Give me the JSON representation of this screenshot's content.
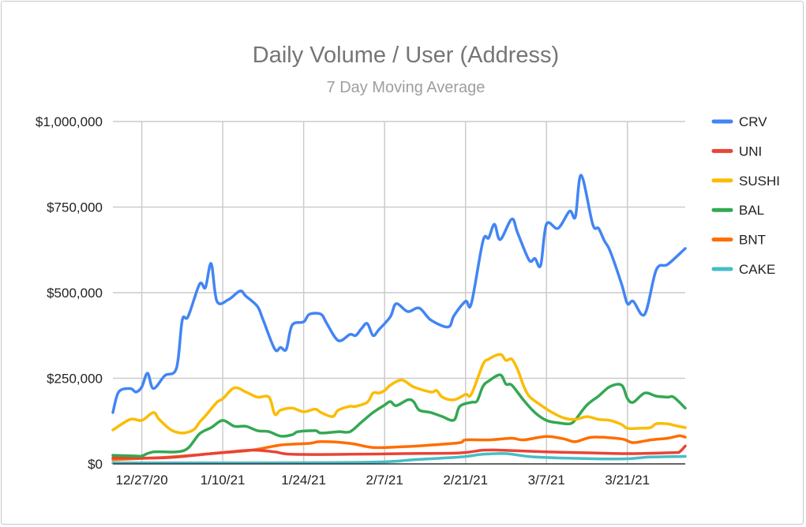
{
  "chart_data": {
    "type": "line",
    "title": "Daily Volume / User (Address)",
    "subtitle": "7 Day Moving Average",
    "xlabel": "",
    "ylabel": "",
    "xlim": [
      "2020-12-22",
      "2021-03-31"
    ],
    "ylim": [
      0,
      1000000
    ],
    "grid": true,
    "legend_position": "right",
    "y_ticks": [
      {
        "value": 0,
        "label": "$0"
      },
      {
        "value": 250000,
        "label": "$250,000"
      },
      {
        "value": 500000,
        "label": "$500,000"
      },
      {
        "value": 750000,
        "label": "$750,000"
      },
      {
        "value": 1000000,
        "label": "$1,000,000"
      }
    ],
    "x_ticks": [
      {
        "value": "2020-12-27",
        "label": "12/27/20"
      },
      {
        "value": "2021-01-10",
        "label": "1/10/21"
      },
      {
        "value": "2021-01-24",
        "label": "1/24/21"
      },
      {
        "value": "2021-02-07",
        "label": "2/7/21"
      },
      {
        "value": "2021-02-21",
        "label": "2/21/21"
      },
      {
        "value": "2021-03-07",
        "label": "3/7/21"
      },
      {
        "value": "2021-03-21",
        "label": "3/21/21"
      }
    ],
    "series": [
      {
        "name": "CRV",
        "color": "#4285f4",
        "points": [
          [
            "2020-12-22",
            150000
          ],
          [
            "2020-12-23",
            210000
          ],
          [
            "2020-12-25",
            220000
          ],
          [
            "2020-12-26",
            210000
          ],
          [
            "2020-12-27",
            225000
          ],
          [
            "2020-12-28",
            265000
          ],
          [
            "2020-12-29",
            220000
          ],
          [
            "2020-12-31",
            258000
          ],
          [
            "2021-01-02",
            280000
          ],
          [
            "2021-01-03",
            420000
          ],
          [
            "2021-01-04",
            430000
          ],
          [
            "2021-01-06",
            525000
          ],
          [
            "2021-01-07",
            515000
          ],
          [
            "2021-01-08",
            585000
          ],
          [
            "2021-01-09",
            475000
          ],
          [
            "2021-01-11",
            480000
          ],
          [
            "2021-01-13",
            505000
          ],
          [
            "2021-01-14",
            490000
          ],
          [
            "2021-01-16",
            460000
          ],
          [
            "2021-01-17",
            420000
          ],
          [
            "2021-01-19",
            335000
          ],
          [
            "2021-01-20",
            340000
          ],
          [
            "2021-01-21",
            335000
          ],
          [
            "2021-01-22",
            405000
          ],
          [
            "2021-01-24",
            415000
          ],
          [
            "2021-01-25",
            437000
          ],
          [
            "2021-01-27",
            437000
          ],
          [
            "2021-01-28",
            410000
          ],
          [
            "2021-01-30",
            360000
          ],
          [
            "2021-02-01",
            378000
          ],
          [
            "2021-02-02",
            375000
          ],
          [
            "2021-02-03",
            395000
          ],
          [
            "2021-02-04",
            410000
          ],
          [
            "2021-02-05",
            375000
          ],
          [
            "2021-02-06",
            392000
          ],
          [
            "2021-02-08",
            430000
          ],
          [
            "2021-02-09",
            468000
          ],
          [
            "2021-02-11",
            445000
          ],
          [
            "2021-02-13",
            455000
          ],
          [
            "2021-02-15",
            420000
          ],
          [
            "2021-02-18",
            400000
          ],
          [
            "2021-02-19",
            433000
          ],
          [
            "2021-02-21",
            475000
          ],
          [
            "2021-02-22",
            468000
          ],
          [
            "2021-02-24",
            650000
          ],
          [
            "2021-02-25",
            660000
          ],
          [
            "2021-02-26",
            700000
          ],
          [
            "2021-02-27",
            655000
          ],
          [
            "2021-03-01",
            715000
          ],
          [
            "2021-03-02",
            675000
          ],
          [
            "2021-03-04",
            595000
          ],
          [
            "2021-03-05",
            600000
          ],
          [
            "2021-03-06",
            580000
          ],
          [
            "2021-03-07",
            700000
          ],
          [
            "2021-03-09",
            688000
          ],
          [
            "2021-03-11",
            738000
          ],
          [
            "2021-03-12",
            722000
          ],
          [
            "2021-03-13",
            843000
          ],
          [
            "2021-03-15",
            700000
          ],
          [
            "2021-03-16",
            688000
          ],
          [
            "2021-03-17",
            652000
          ],
          [
            "2021-03-18",
            622000
          ],
          [
            "2021-03-20",
            525000
          ],
          [
            "2021-03-21",
            468000
          ],
          [
            "2021-03-22",
            475000
          ],
          [
            "2021-03-24",
            437000
          ],
          [
            "2021-03-26",
            567000
          ],
          [
            "2021-03-28",
            583000
          ],
          [
            "2021-03-31",
            629000
          ]
        ]
      },
      {
        "name": "UNI",
        "color": "#ea4335",
        "points": [
          [
            "2020-12-22",
            18000
          ],
          [
            "2020-12-31",
            18000
          ],
          [
            "2021-01-08",
            30000
          ],
          [
            "2021-01-15",
            40000
          ],
          [
            "2021-01-19",
            35000
          ],
          [
            "2021-01-22",
            28000
          ],
          [
            "2021-02-01",
            28000
          ],
          [
            "2021-02-10",
            30000
          ],
          [
            "2021-02-20",
            32000
          ],
          [
            "2021-02-24",
            40000
          ],
          [
            "2021-02-27",
            40000
          ],
          [
            "2021-03-07",
            35000
          ],
          [
            "2021-03-15",
            32000
          ],
          [
            "2021-03-22",
            30000
          ],
          [
            "2021-03-29",
            33000
          ],
          [
            "2021-03-30",
            35000
          ],
          [
            "2021-03-31",
            52000
          ]
        ]
      },
      {
        "name": "SUSHI",
        "color": "#fbbc04",
        "points": [
          [
            "2020-12-22",
            99000
          ],
          [
            "2020-12-25",
            130000
          ],
          [
            "2020-12-27",
            127000
          ],
          [
            "2020-12-29",
            150000
          ],
          [
            "2020-12-30",
            130000
          ],
          [
            "2021-01-01",
            100000
          ],
          [
            "2021-01-03",
            90000
          ],
          [
            "2021-01-05",
            100000
          ],
          [
            "2021-01-06",
            122000
          ],
          [
            "2021-01-07",
            140000
          ],
          [
            "2021-01-09",
            180000
          ],
          [
            "2021-01-10",
            190000
          ],
          [
            "2021-01-12",
            222000
          ],
          [
            "2021-01-14",
            210000
          ],
          [
            "2021-01-16",
            195000
          ],
          [
            "2021-01-18",
            195000
          ],
          [
            "2021-01-19",
            145000
          ],
          [
            "2021-01-20",
            157000
          ],
          [
            "2021-01-22",
            163000
          ],
          [
            "2021-01-24",
            152000
          ],
          [
            "2021-01-26",
            160000
          ],
          [
            "2021-01-27",
            150000
          ],
          [
            "2021-01-29",
            138000
          ],
          [
            "2021-01-30",
            157000
          ],
          [
            "2021-02-01",
            168000
          ],
          [
            "2021-02-02",
            168000
          ],
          [
            "2021-02-04",
            180000
          ],
          [
            "2021-02-05",
            207000
          ],
          [
            "2021-02-06",
            207000
          ],
          [
            "2021-02-07",
            214000
          ],
          [
            "2021-02-08",
            230000
          ],
          [
            "2021-02-10",
            245000
          ],
          [
            "2021-02-12",
            225000
          ],
          [
            "2021-02-15",
            210000
          ],
          [
            "2021-02-16",
            214000
          ],
          [
            "2021-02-17",
            195000
          ],
          [
            "2021-02-19",
            187000
          ],
          [
            "2021-02-21",
            203000
          ],
          [
            "2021-02-22",
            203000
          ],
          [
            "2021-02-24",
            290000
          ],
          [
            "2021-02-25",
            306000
          ],
          [
            "2021-02-27",
            320000
          ],
          [
            "2021-02-28",
            302000
          ],
          [
            "2021-03-01",
            306000
          ],
          [
            "2021-03-02",
            276000
          ],
          [
            "2021-03-03",
            230000
          ],
          [
            "2021-03-04",
            198000
          ],
          [
            "2021-03-06",
            172000
          ],
          [
            "2021-03-08",
            150000
          ],
          [
            "2021-03-10",
            134000
          ],
          [
            "2021-03-12",
            130000
          ],
          [
            "2021-03-14",
            138000
          ],
          [
            "2021-03-16",
            130000
          ],
          [
            "2021-03-18",
            127000
          ],
          [
            "2021-03-20",
            115000
          ],
          [
            "2021-03-21",
            104000
          ],
          [
            "2021-03-23",
            104000
          ],
          [
            "2021-03-25",
            106000
          ],
          [
            "2021-03-26",
            117000
          ],
          [
            "2021-03-28",
            117000
          ],
          [
            "2021-03-29",
            113000
          ],
          [
            "2021-03-31",
            106000
          ]
        ]
      },
      {
        "name": "BAL",
        "color": "#34a853",
        "points": [
          [
            "2020-12-22",
            25000
          ],
          [
            "2020-12-26",
            23000
          ],
          [
            "2020-12-27",
            23000
          ],
          [
            "2020-12-29",
            35000
          ],
          [
            "2021-01-02",
            35000
          ],
          [
            "2021-01-04",
            46000
          ],
          [
            "2021-01-06",
            88000
          ],
          [
            "2021-01-08",
            106000
          ],
          [
            "2021-01-10",
            127000
          ],
          [
            "2021-01-12",
            110000
          ],
          [
            "2021-01-14",
            110000
          ],
          [
            "2021-01-16",
            97000
          ],
          [
            "2021-01-18",
            94000
          ],
          [
            "2021-01-20",
            81000
          ],
          [
            "2021-01-22",
            85000
          ],
          [
            "2021-01-23",
            94000
          ],
          [
            "2021-01-26",
            97000
          ],
          [
            "2021-01-27",
            90000
          ],
          [
            "2021-01-30",
            94000
          ],
          [
            "2021-02-01",
            94000
          ],
          [
            "2021-02-03",
            122000
          ],
          [
            "2021-02-05",
            150000
          ],
          [
            "2021-02-07",
            172000
          ],
          [
            "2021-02-08",
            182000
          ],
          [
            "2021-02-09",
            170000
          ],
          [
            "2021-02-11",
            187000
          ],
          [
            "2021-02-12",
            182000
          ],
          [
            "2021-02-13",
            157000
          ],
          [
            "2021-02-15",
            150000
          ],
          [
            "2021-02-17",
            138000
          ],
          [
            "2021-02-19",
            128000
          ],
          [
            "2021-02-20",
            168000
          ],
          [
            "2021-02-22",
            180000
          ],
          [
            "2021-02-23",
            184000
          ],
          [
            "2021-02-24",
            226000
          ],
          [
            "2021-02-25",
            242000
          ],
          [
            "2021-02-27",
            260000
          ],
          [
            "2021-02-28",
            233000
          ],
          [
            "2021-03-01",
            230000
          ],
          [
            "2021-03-03",
            187000
          ],
          [
            "2021-03-05",
            150000
          ],
          [
            "2021-03-07",
            127000
          ],
          [
            "2021-03-09",
            120000
          ],
          [
            "2021-03-11",
            117000
          ],
          [
            "2021-03-12",
            129000
          ],
          [
            "2021-03-14",
            172000
          ],
          [
            "2021-03-16",
            198000
          ],
          [
            "2021-03-18",
            226000
          ],
          [
            "2021-03-20",
            230000
          ],
          [
            "2021-03-21",
            191000
          ],
          [
            "2021-03-22",
            180000
          ],
          [
            "2021-03-24",
            207000
          ],
          [
            "2021-03-26",
            198000
          ],
          [
            "2021-03-28",
            195000
          ],
          [
            "2021-03-29",
            195000
          ],
          [
            "2021-03-31",
            163000
          ]
        ]
      },
      {
        "name": "BNT",
        "color": "#ff6d01",
        "points": [
          [
            "2020-12-22",
            12000
          ],
          [
            "2021-01-01",
            20000
          ],
          [
            "2021-01-08",
            30000
          ],
          [
            "2021-01-15",
            40000
          ],
          [
            "2021-01-20",
            55000
          ],
          [
            "2021-01-25",
            60000
          ],
          [
            "2021-01-27",
            65000
          ],
          [
            "2021-02-01",
            60000
          ],
          [
            "2021-02-05",
            48000
          ],
          [
            "2021-02-10",
            50000
          ],
          [
            "2021-02-15",
            55000
          ],
          [
            "2021-02-20",
            62000
          ],
          [
            "2021-02-21",
            70000
          ],
          [
            "2021-02-25",
            70000
          ],
          [
            "2021-03-01",
            75000
          ],
          [
            "2021-03-03",
            70000
          ],
          [
            "2021-03-07",
            80000
          ],
          [
            "2021-03-10",
            73000
          ],
          [
            "2021-03-12",
            65000
          ],
          [
            "2021-03-15",
            78000
          ],
          [
            "2021-03-20",
            73000
          ],
          [
            "2021-03-22",
            62000
          ],
          [
            "2021-03-25",
            70000
          ],
          [
            "2021-03-28",
            75000
          ],
          [
            "2021-03-30",
            82000
          ],
          [
            "2021-03-31",
            78000
          ]
        ]
      },
      {
        "name": "CAKE",
        "color": "#46bdc6",
        "points": [
          [
            "2020-12-22",
            3000
          ],
          [
            "2021-01-15",
            3000
          ],
          [
            "2021-02-05",
            5000
          ],
          [
            "2021-02-12",
            12000
          ],
          [
            "2021-02-20",
            20000
          ],
          [
            "2021-02-24",
            28000
          ],
          [
            "2021-02-28",
            30000
          ],
          [
            "2021-03-05",
            20000
          ],
          [
            "2021-03-15",
            15000
          ],
          [
            "2021-03-21",
            15000
          ],
          [
            "2021-03-25",
            20000
          ],
          [
            "2021-03-31",
            22000
          ]
        ]
      }
    ]
  }
}
